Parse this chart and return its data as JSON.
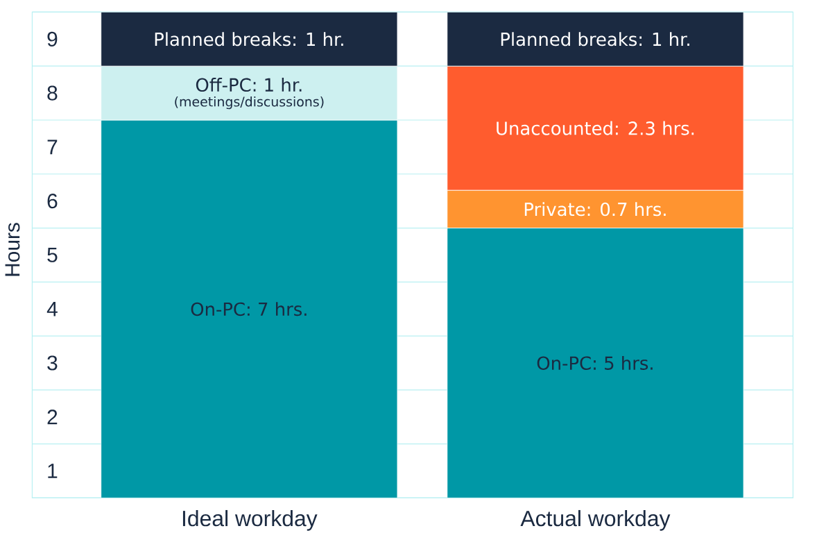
{
  "chart_data": {
    "type": "bar",
    "stacked": true,
    "ylabel": "Hours",
    "categories": [
      "Ideal workday",
      "Actual workday"
    ],
    "series": [
      {
        "color": "#0098a6",
        "values": [
          7,
          5
        ],
        "value_labels": [
          "On-PC: 7 hrs.",
          "On-PC: 5 hrs."
        ]
      },
      {
        "color": "#cdf0f0",
        "values": [
          1,
          null
        ],
        "value_labels": [
          "Off-PC: 1 hr.",
          null
        ]
      },
      {
        "color": "#ff9430",
        "values": [
          null,
          0.7
        ],
        "value_labels": [
          null,
          "Private: 0.7 hrs."
        ]
      },
      {
        "color": "#ff5c2e",
        "values": [
          null,
          2.3
        ],
        "value_labels": [
          null,
          "Unaccounted: 2.3 hrs."
        ]
      },
      {
        "color": "#1b2a41",
        "values": [
          1,
          1
        ],
        "value_labels": [
          "Planned breaks: 1 hr.",
          "Planned breaks: 1 hr."
        ]
      }
    ],
    "annotations": [
      "(meetings/discussions)"
    ],
    "ylim": [
      0,
      9
    ],
    "yticks": [
      {
        "value": 0,
        "label": null
      },
      {
        "value": 0.5,
        "label": "1"
      },
      {
        "value": 1,
        "label": null
      },
      {
        "value": 1.5,
        "label": "2"
      },
      {
        "value": 2,
        "label": null
      },
      {
        "value": 2.5,
        "label": "3"
      },
      {
        "value": 3,
        "label": null
      },
      {
        "value": 3.5,
        "label": "4"
      },
      {
        "value": 4,
        "label": null
      },
      {
        "value": 4.5,
        "label": "5"
      },
      {
        "value": 5,
        "label": null
      },
      {
        "value": 5.5,
        "label": "6"
      },
      {
        "value": 6,
        "label": null
      },
      {
        "value": 6.5,
        "label": "7"
      },
      {
        "value": 7,
        "label": null
      },
      {
        "value": 7.5,
        "label": "8"
      },
      {
        "value": 8,
        "label": null
      },
      {
        "value": 8.5,
        "label": "9"
      },
      {
        "value": 9,
        "label": null
      }
    ],
    "grid": "y"
  }
}
